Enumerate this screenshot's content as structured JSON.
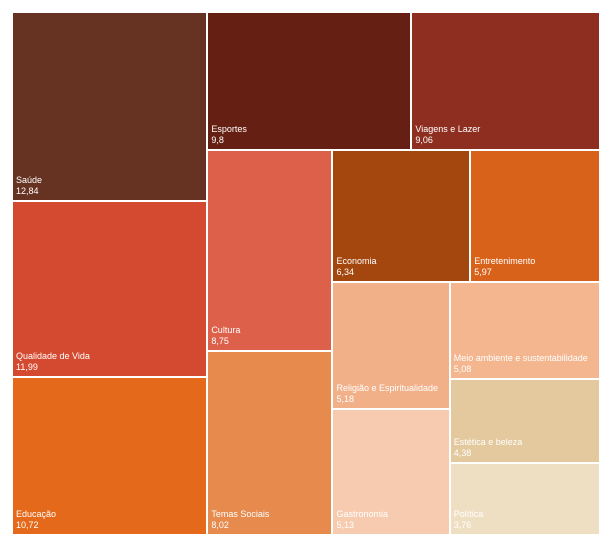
{
  "chart_data": {
    "type": "treemap",
    "categories": [
      "Saúde",
      "Qualidade de Vida",
      "Educação",
      "Esportes",
      "Viagens e Lazer",
      "Cultura",
      "Temas Sociais",
      "Economia",
      "Entretenimento",
      "Religião e Espiritualidade",
      "Gastronomia",
      "Meio ambiente e sustentabilidade",
      "Estética e beleza",
      "Política"
    ],
    "values": [
      12.84,
      11.99,
      10.72,
      9.8,
      9.06,
      8.75,
      8.02,
      6.34,
      5.97,
      5.18,
      5.13,
      5.08,
      4.38,
      3.76
    ],
    "value_labels": [
      "12,84",
      "11,99",
      "10,72",
      "9,8",
      "9,06",
      "8,75",
      "8,02",
      "6,34",
      "5,97",
      "5,18",
      "5,13",
      "5,08",
      "4,38",
      "3,76"
    ],
    "colors": [
      "#663323",
      "#d44a30",
      "#e5691a",
      "#662013",
      "#8d2e20",
      "#dd604a",
      "#e68a4e",
      "#a3470f",
      "#d86219",
      "#f1b088",
      "#f7cbaf",
      "#f3b68f",
      "#e4c99e",
      "#efdfc2"
    ]
  }
}
